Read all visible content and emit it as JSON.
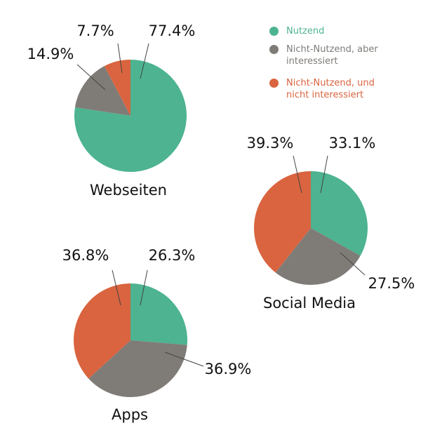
{
  "legend": [
    {
      "name": "Nutzend",
      "color": "#4db390"
    },
    {
      "name": "Nicht-Nutzend, aber interessiert",
      "color": "#7f7c78"
    },
    {
      "name": "Nicht-Nutzend, und nicht interessiert",
      "color": "#d9643f"
    }
  ],
  "chart_data": [
    {
      "type": "pie",
      "title": "Webseiten",
      "values": [
        77.4,
        14.9,
        7.7
      ],
      "value_labels": [
        "77.4%",
        "14.9%",
        "7.7%"
      ]
    },
    {
      "type": "pie",
      "title": "Social Media",
      "values": [
        33.1,
        27.5,
        39.3
      ],
      "value_labels": [
        "33.1%",
        "27.5%",
        "39.3%"
      ]
    },
    {
      "type": "pie",
      "title": "Apps",
      "values": [
        26.3,
        36.9,
        36.8
      ],
      "value_labels": [
        "26.3%",
        "36.9%",
        "36.8%"
      ]
    }
  ]
}
